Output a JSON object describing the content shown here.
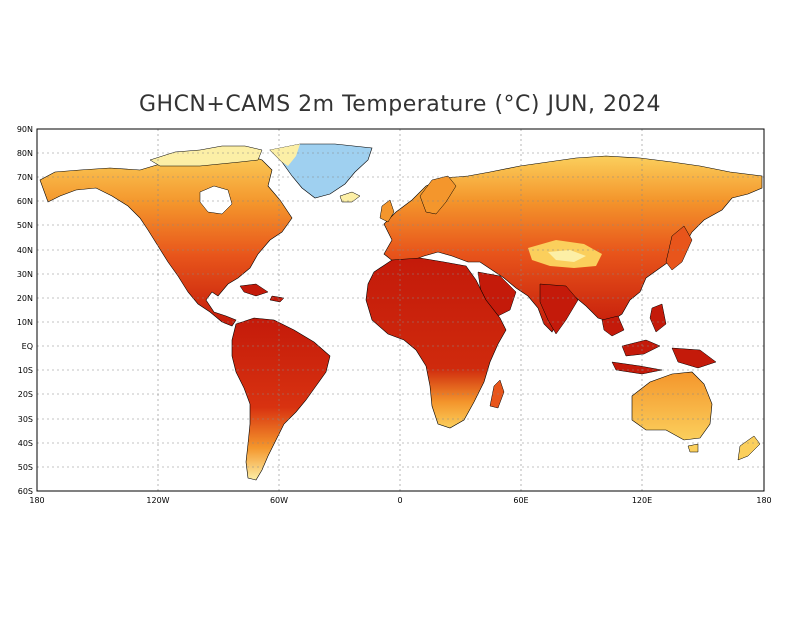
{
  "title": "GHCN+CAMS 2m Temperature (°C) JUN, 2024",
  "axes": {
    "lat_labels": [
      "90N",
      "80N",
      "70N",
      "60N",
      "50N",
      "40N",
      "30N",
      "20N",
      "10N",
      "EQ",
      "10S",
      "20S",
      "30S",
      "40S",
      "50S",
      "60S"
    ],
    "lon_labels": [
      "180",
      "120W",
      "60W",
      "0",
      "60E",
      "120E",
      "180"
    ]
  },
  "colors": {
    "hot": "#c41a0a",
    "warm": "#e8551b",
    "mild": "#f4962c",
    "cool": "#fbcf5c",
    "cold": "#fcefa6",
    "ice": "#9fd0f0",
    "ocean": "#ffffff",
    "grid": "#888888"
  }
}
